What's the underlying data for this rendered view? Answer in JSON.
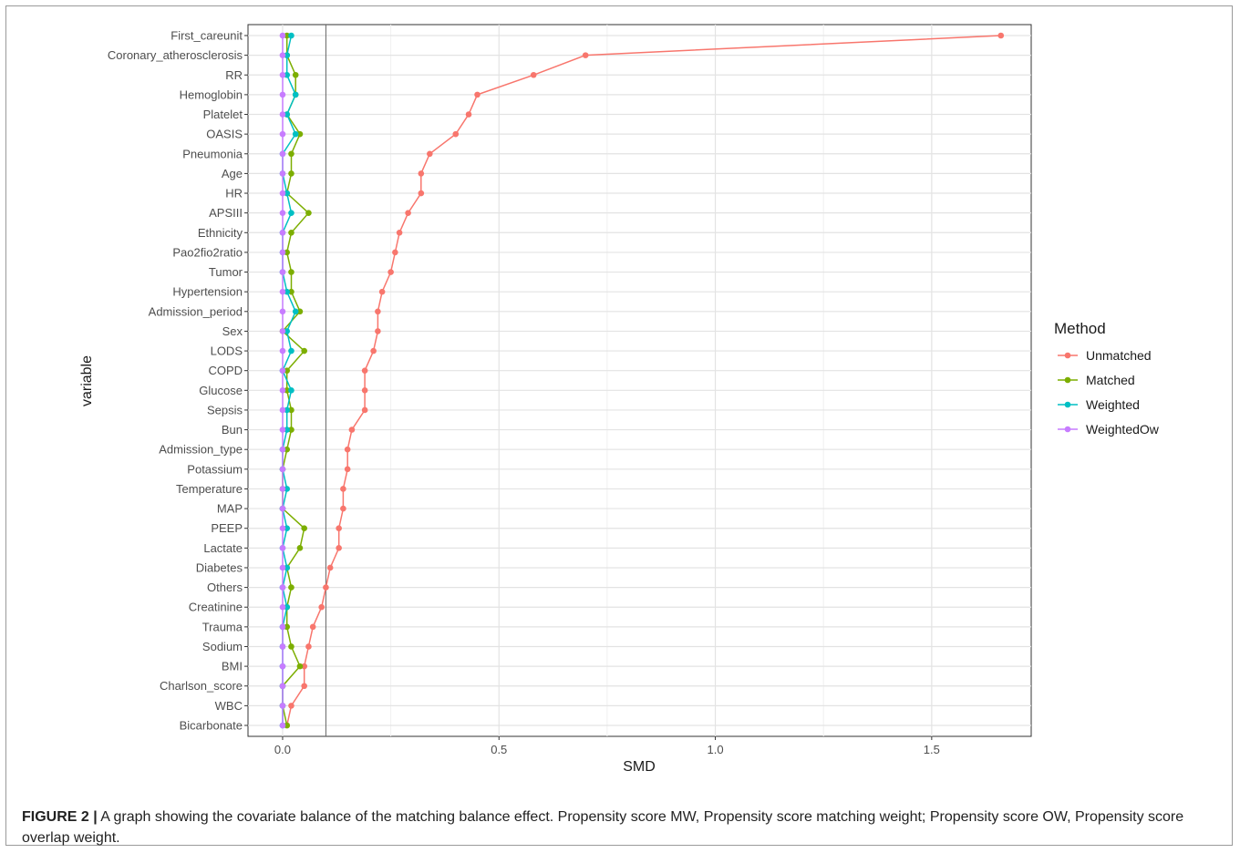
{
  "chart_data": {
    "type": "line",
    "xlabel": "SMD",
    "ylabel": "variable",
    "xlim": [
      -0.08,
      1.73
    ],
    "x_ticks": [
      0.0,
      0.5,
      1.0,
      1.5
    ],
    "x_tick_labels": [
      "0.0",
      "0.5",
      "1.0",
      "1.5"
    ],
    "vline": 0.1,
    "grid": true,
    "legend_title": "Method",
    "legend_position": "right",
    "categories": [
      "First_careunit",
      "Coronary_atherosclerosis",
      "RR",
      "Hemoglobin",
      "Platelet",
      "OASIS",
      "Pneumonia",
      "Age",
      "HR",
      "APSIII",
      "Ethnicity",
      "Pao2fio2ratio",
      "Tumor",
      "Hypertension",
      "Admission_period",
      "Sex",
      "LODS",
      "COPD",
      "Glucose",
      "Sepsis",
      "Bun",
      "Admission_type",
      "Potassium",
      "Temperature",
      "MAP",
      "PEEP",
      "Lactate",
      "Diabetes",
      "Others",
      "Creatinine",
      "Trauma",
      "Sodium",
      "BMI",
      "Charlson_score",
      "WBC",
      "Bicarbonate"
    ],
    "series": [
      {
        "name": "Unmatched",
        "color": "#F8766D",
        "values": [
          1.66,
          0.7,
          0.58,
          0.45,
          0.43,
          0.4,
          0.34,
          0.32,
          0.32,
          0.29,
          0.27,
          0.26,
          0.25,
          0.23,
          0.22,
          0.22,
          0.21,
          0.19,
          0.19,
          0.19,
          0.16,
          0.15,
          0.15,
          0.14,
          0.14,
          0.13,
          0.13,
          0.11,
          0.1,
          0.09,
          0.07,
          0.06,
          0.05,
          0.05,
          0.02,
          0.01
        ]
      },
      {
        "name": "Matched",
        "color": "#7CAE00",
        "values": [
          0.01,
          0.01,
          0.03,
          0.03,
          0.01,
          0.04,
          0.02,
          0.02,
          0.01,
          0.06,
          0.02,
          0.01,
          0.02,
          0.02,
          0.04,
          0.0,
          0.05,
          0.01,
          0.01,
          0.02,
          0.02,
          0.01,
          0.0,
          0.0,
          0.0,
          0.05,
          0.04,
          0.01,
          0.02,
          0.01,
          0.01,
          0.02,
          0.04,
          0.0,
          0.0,
          0.01
        ]
      },
      {
        "name": "Weighted",
        "color": "#00BFC4",
        "values": [
          0.02,
          0.01,
          0.01,
          0.03,
          0.01,
          0.03,
          0.0,
          0.0,
          0.01,
          0.02,
          0.0,
          0.0,
          0.0,
          0.01,
          0.03,
          0.01,
          0.02,
          0.0,
          0.02,
          0.01,
          0.01,
          0.0,
          0.0,
          0.01,
          0.0,
          0.01,
          0.0,
          0.01,
          0.0,
          0.01,
          0.0,
          0.0,
          0.0,
          0.0,
          0.0,
          0.0
        ]
      },
      {
        "name": "WeightedOw",
        "color": "#C77CFF",
        "values": [
          0,
          0,
          0,
          0,
          0,
          0,
          0,
          0,
          0,
          0,
          0,
          0,
          0,
          0,
          0,
          0,
          0,
          0,
          0,
          0,
          0,
          0,
          0,
          0,
          0,
          0,
          0,
          0,
          0,
          0,
          0,
          0,
          0,
          0,
          0,
          0
        ]
      }
    ]
  },
  "caption": {
    "label": "FIGURE 2 |",
    "text": " A graph showing the covariate balance of the matching balance effect. Propensity score MW, Propensity score matching weight; Propensity score OW, Propensity score overlap weight."
  }
}
